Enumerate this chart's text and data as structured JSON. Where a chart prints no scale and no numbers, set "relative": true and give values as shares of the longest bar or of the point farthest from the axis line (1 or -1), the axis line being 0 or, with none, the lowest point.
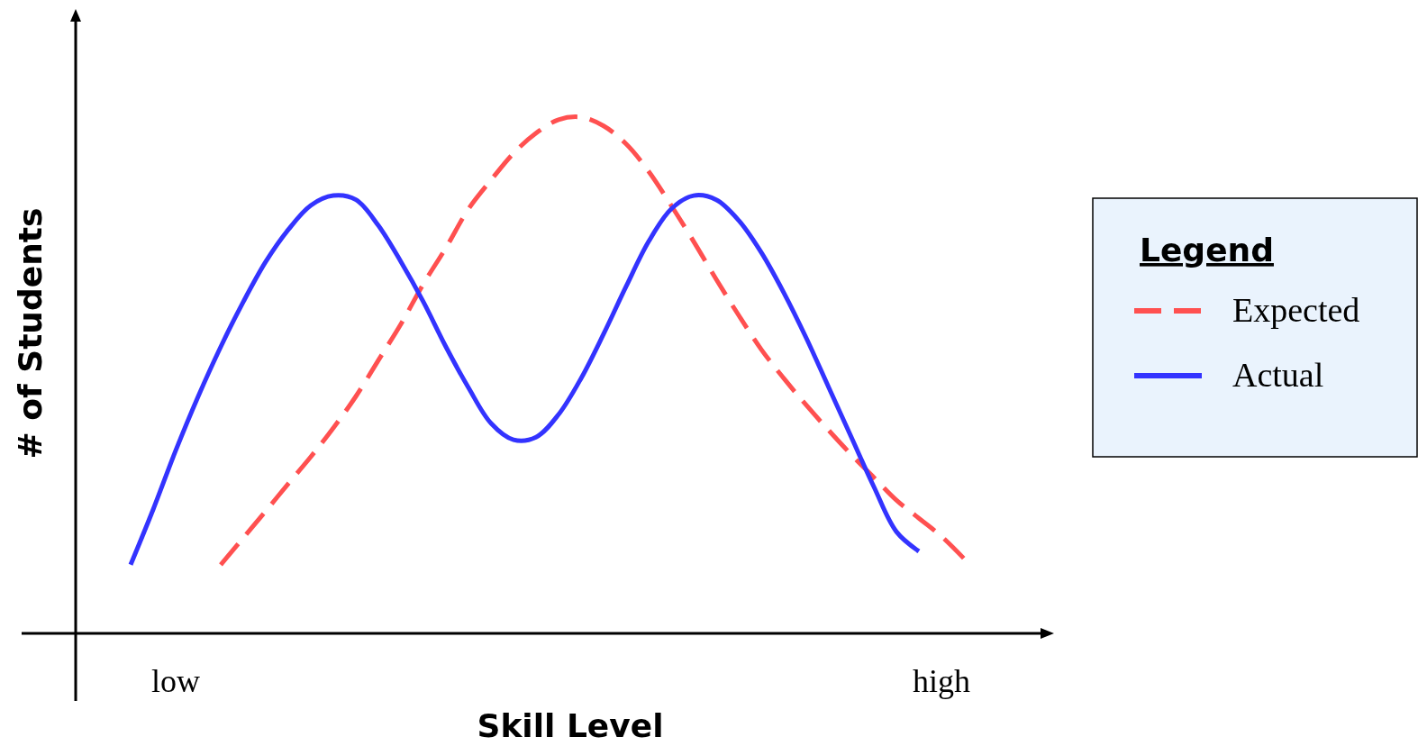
{
  "chart_data": {
    "type": "line",
    "relative": true,
    "xlabel": "Skill Level",
    "ylabel": "# of Students",
    "legend_title": "Legend",
    "legend": "right",
    "categories": [
      null,
      null,
      "low",
      null,
      null,
      null,
      null,
      null,
      null,
      null,
      null,
      null,
      null,
      null,
      null,
      null,
      null,
      null,
      null,
      null,
      null,
      null,
      null,
      null,
      null,
      null,
      null,
      null,
      null,
      null,
      null,
      null,
      null,
      null,
      null,
      null,
      "high",
      null
    ],
    "series": [
      {
        "name": "Expected",
        "color": "#ff5050",
        "line_style": "dashed",
        "values": [
          null,
          null,
          null,
          null,
          0.133,
          0.185,
          0.237,
          0.29,
          0.342,
          0.398,
          0.459,
          0.529,
          0.599,
          0.677,
          0.747,
          0.822,
          0.878,
          0.93,
          0.969,
          0.995,
          1,
          0.983,
          0.948,
          0.895,
          0.829,
          0.759,
          0.686,
          0.616,
          0.55,
          0.494,
          0.442,
          0.393,
          0.346,
          0.302,
          0.258,
          0.223,
          0.188,
          0.145
        ]
      },
      {
        "name": "Actual",
        "color": "#3333ff",
        "line_style": "solid",
        "values": [
          0.133,
          0.24,
          0.354,
          0.459,
          0.555,
          0.642,
          0.72,
          0.782,
          0.829,
          0.848,
          0.84,
          0.79,
          0.72,
          0.642,
          0.555,
          0.476,
          0.407,
          0.375,
          0.38,
          0.424,
          0.494,
          0.58,
          0.672,
          0.759,
          0.822,
          0.848,
          0.84,
          0.8,
          0.738,
          0.66,
          0.572,
          0.476,
          0.38,
          0.284,
          0.197,
          0.159,
          null,
          null
        ]
      }
    ]
  }
}
